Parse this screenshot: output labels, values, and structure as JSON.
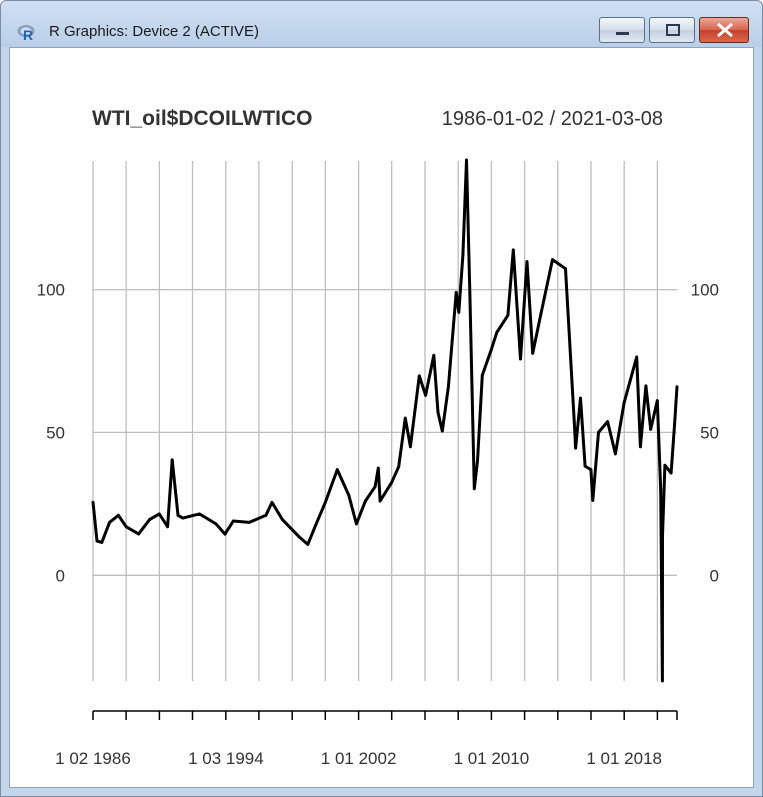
{
  "window": {
    "title": "R Graphics: Device 2 (ACTIVE)",
    "icon": "r-logo-icon",
    "buttons": {
      "minimize": "minimize-icon",
      "maximize": "maximize-icon",
      "close": "close-icon"
    }
  },
  "chart_data": {
    "type": "line",
    "title": "WTI_oil$DCOILWTICO",
    "date_range": "1986-01-02 / 2021-03-08",
    "xlabel": "",
    "ylabel": "",
    "ylim": [
      -37,
      145
    ],
    "y_ticks": [
      "0",
      "50",
      "100"
    ],
    "x_tick_labels": [
      {
        "label": "1 02 1986",
        "date": "1986-01-02"
      },
      {
        "label": "1 03 1994",
        "date": "1994-01-03"
      },
      {
        "label": "1 01 2002",
        "date": "2002-01-01"
      },
      {
        "label": "1 01 2010",
        "date": "2010-01-01"
      },
      {
        "label": "1 01 2018",
        "date": "2018-01-01"
      }
    ],
    "grid": true,
    "line_color": "#000000",
    "grid_color": "#bebebe",
    "series": [
      {
        "x": [
          "1986-01-02",
          "1986-04-01",
          "1986-07-15",
          "1987-01-01",
          "1987-07-15",
          "1987-12-31",
          "1988-10-01",
          "1989-06-01",
          "1989-12-31",
          "1990-07-01",
          "1990-10-11",
          "1991-02-15",
          "1991-06-01",
          "1992-06-01",
          "1993-06-01",
          "1993-12-15",
          "1994-06-15",
          "1995-06-01",
          "1996-06-01",
          "1996-10-15",
          "1997-06-01",
          "1998-06-01",
          "1998-12-10",
          "1999-06-01",
          "1999-12-31",
          "2000-09-20",
          "2001-06-01",
          "2001-11-15",
          "2002-06-01",
          "2002-12-31",
          "2003-03-10",
          "2003-04-20",
          "2003-12-31",
          "2004-06-01",
          "2004-10-25",
          "2005-02-15",
          "2005-08-30",
          "2006-01-15",
          "2006-07-14",
          "2006-10-15",
          "2007-01-18",
          "2007-06-01",
          "2007-11-20",
          "2008-01-15",
          "2008-04-15",
          "2008-07-03",
          "2008-09-15",
          "2008-12-22",
          "2009-03-01",
          "2009-06-15",
          "2009-12-31",
          "2010-05-01",
          "2010-12-31",
          "2011-04-29",
          "2011-10-04",
          "2012-02-24",
          "2012-06-28",
          "2012-12-31",
          "2013-09-06",
          "2014-06-20",
          "2014-12-31",
          "2015-01-28",
          "2015-05-15",
          "2015-08-24",
          "2015-12-31",
          "2016-02-11",
          "2016-06-15",
          "2016-12-31",
          "2017-06-21",
          "2017-12-31",
          "2018-10-03",
          "2018-12-24",
          "2019-04-23",
          "2019-08-07",
          "2019-12-31",
          "2020-03-15",
          "2020-04-20",
          "2020-04-23",
          "2020-06-15",
          "2020-10-30",
          "2021-01-15",
          "2021-03-08"
        ],
        "y": [
          25.6,
          12.0,
          11.5,
          18.5,
          21.0,
          17.0,
          14.5,
          19.5,
          21.5,
          17.0,
          40.4,
          21.0,
          20.0,
          21.5,
          18.0,
          14.4,
          19.0,
          18.5,
          21.0,
          25.5,
          19.5,
          13.5,
          10.8,
          17.5,
          25.5,
          37.0,
          28.0,
          18.0,
          26.0,
          31.0,
          37.5,
          26.0,
          32.5,
          38.0,
          55.0,
          45.0,
          69.8,
          63.0,
          77.0,
          57.0,
          50.5,
          66.0,
          99.0,
          92.0,
          112.0,
          145.3,
          98.0,
          30.3,
          40.0,
          70.0,
          79.0,
          85.0,
          91.0,
          113.9,
          75.7,
          109.8,
          77.7,
          91.8,
          110.5,
          107.3,
          53.5,
          44.5,
          62.0,
          38.2,
          37.0,
          26.2,
          50.0,
          53.8,
          42.5,
          60.4,
          76.4,
          45.0,
          66.3,
          51.1,
          61.1,
          30.0,
          -36.98,
          13.8,
          38.5,
          35.8,
          53.0,
          66.0
        ]
      }
    ]
  }
}
